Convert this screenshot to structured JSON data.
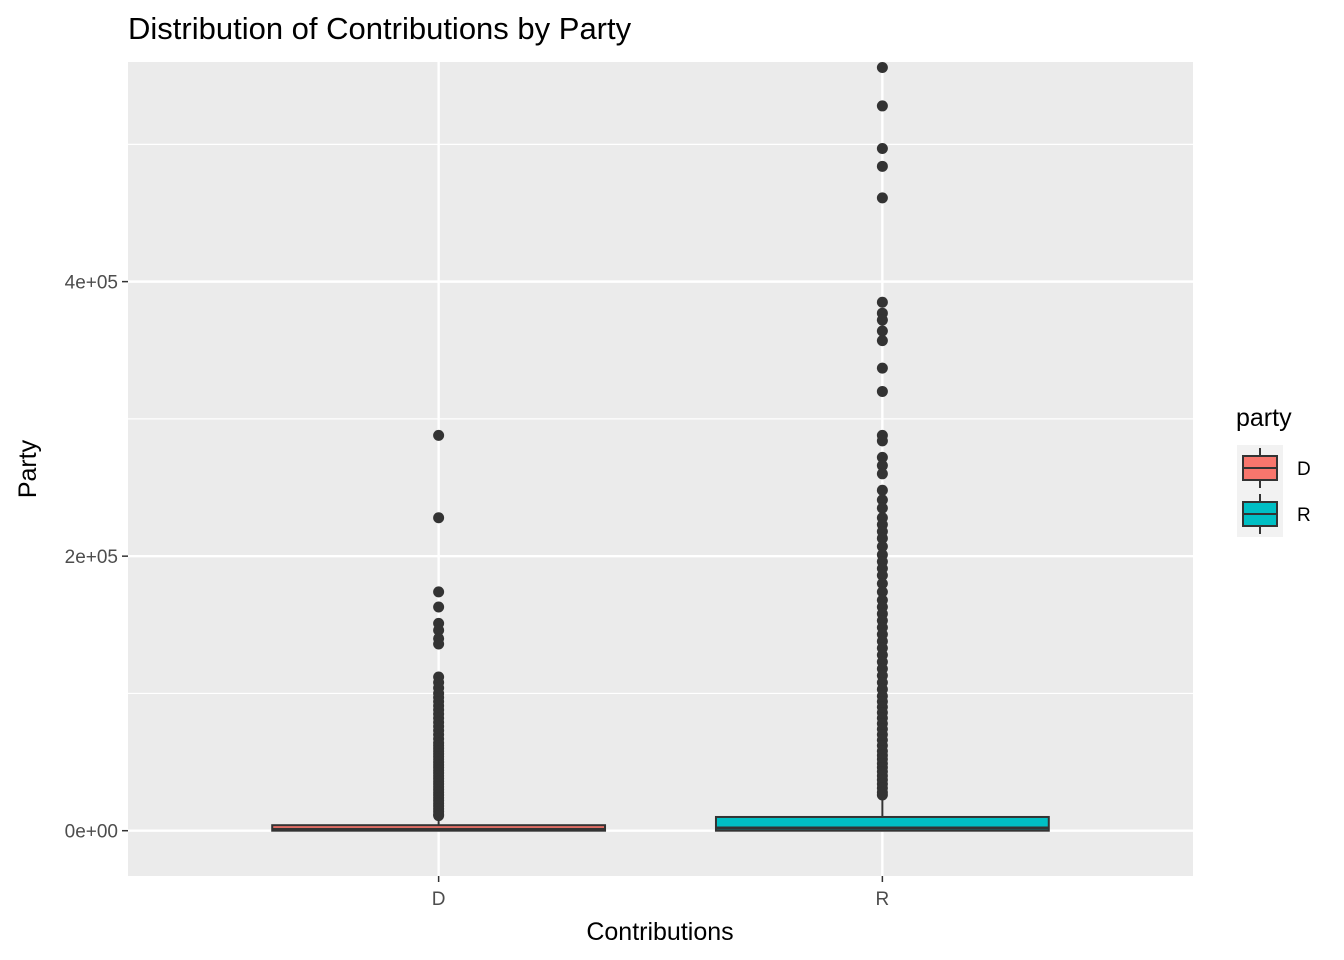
{
  "chart_data": {
    "type": "boxplot",
    "title": "Distribution of Contributions by Party",
    "xlabel": "Contributions",
    "ylabel": "Party",
    "categories": [
      "D",
      "R"
    ],
    "ylim": [
      -33000,
      560000
    ],
    "y_ticks": [
      0,
      200000,
      400000
    ],
    "y_tick_labels": [
      "0e+00",
      "2e+05",
      "4e+05"
    ],
    "grid": true,
    "legend": {
      "title": "party",
      "position": "right",
      "entries": [
        {
          "label": "D",
          "color": "#F8766D"
        },
        {
          "label": "R",
          "color": "#00BFC4"
        }
      ]
    },
    "series": [
      {
        "category": "D",
        "color": "#F8766D",
        "q1": 0,
        "median": 1000,
        "q3": 4000,
        "whisker_low": 0,
        "whisker_high": 10000,
        "outliers": [
          288000,
          228000,
          174000,
          163000,
          151000,
          146000,
          140000,
          136000,
          112000,
          108000,
          104000,
          100000,
          97000,
          94000,
          91000,
          88000,
          85000,
          82000,
          79000,
          76000,
          73000,
          70000,
          67000,
          64000,
          62000,
          60000,
          58000,
          56000,
          54000,
          52000,
          50000,
          48000,
          46000,
          44000,
          42000,
          40000,
          38000,
          36000,
          34000,
          32000,
          30000,
          28000,
          26000,
          24000,
          22000,
          20000,
          18000,
          16000,
          14000,
          12000,
          11000
        ]
      },
      {
        "category": "R",
        "color": "#00BFC4",
        "q1": 0,
        "median": 2000,
        "q3": 10000,
        "whisker_low": 0,
        "whisker_high": 25000,
        "outliers": [
          556000,
          528000,
          497000,
          484000,
          461000,
          385000,
          377000,
          372000,
          364000,
          357000,
          337000,
          320000,
          288000,
          284000,
          272000,
          266000,
          260000,
          248000,
          241000,
          235000,
          228000,
          223000,
          218000,
          213000,
          207000,
          201000,
          196000,
          191000,
          186000,
          180000,
          174000,
          168000,
          163000,
          158000,
          153000,
          148000,
          143000,
          138000,
          133000,
          128000,
          123000,
          118000,
          113000,
          108000,
          103000,
          98000,
          94000,
          90000,
          86000,
          82000,
          78000,
          74000,
          70000,
          66000,
          62000,
          58000,
          55000,
          52000,
          49000,
          46000,
          43000,
          40000,
          37000,
          34000,
          31000,
          28000,
          26000
        ]
      }
    ]
  }
}
